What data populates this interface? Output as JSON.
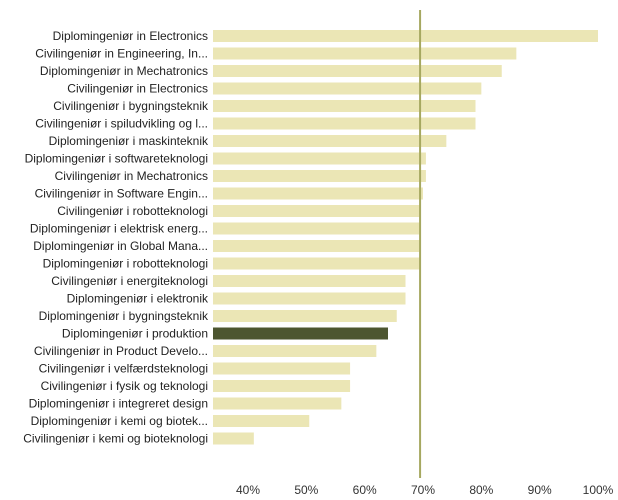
{
  "chart_data": {
    "type": "bar",
    "orientation": "horizontal",
    "categories": [
      "Diplomingeniør in Electronics",
      "Civilingeniør in Engineering, In...",
      "Diplomingeniør in Mechatronics",
      "Civilingeniør in Electronics",
      "Civilingeniør i bygningsteknik",
      "Civilingeniør i spiludvikling og l...",
      "Diplomingeniør i maskinteknik",
      "Diplomingeniør i softwareteknologi",
      "Civilingeniør in Mechatronics",
      "Civilingeniør in Software Engin...",
      "Civilingeniør i robotteknologi",
      "Diplomingeniør i elektrisk energ...",
      "Diplomingeniør in Global Mana...",
      "Diplomingeniør i robotteknologi",
      "Civilingeniør i energiteknologi",
      "Diplomingeniør i elektronik",
      "Diplomingeniør i bygningsteknik",
      "Diplomingeniør i produktion",
      "Civilingeniør in Product Develo...",
      "Civilingeniør i velfærdsteknologi",
      "Civilingeniør i fysik og teknologi",
      "Diplomingeniør i integreret design",
      "Diplomingeniør i kemi og biotek...",
      "Civilingeniør i kemi og bioteknologi"
    ],
    "values": [
      100,
      86,
      83.5,
      80,
      79,
      79,
      74,
      70.5,
      70.5,
      70,
      69.5,
      69.5,
      69.5,
      69.5,
      67,
      67,
      65.5,
      64,
      62,
      57.5,
      57.5,
      56,
      50.5,
      41
    ],
    "highlight_index": 17,
    "reference_line": 69.5,
    "xlim": [
      34,
      100
    ],
    "ticks": [
      40,
      50,
      60,
      70,
      80,
      90,
      100
    ],
    "tick_labels": [
      "40%",
      "50%",
      "60%",
      "70%",
      "80%",
      "90%",
      "100%"
    ],
    "title": "",
    "xlabel": "",
    "ylabel": "",
    "grid": false,
    "colors": {
      "bar": "#ebe6b5",
      "highlight": "#4d5630",
      "reference_line": "#a6a860"
    }
  }
}
